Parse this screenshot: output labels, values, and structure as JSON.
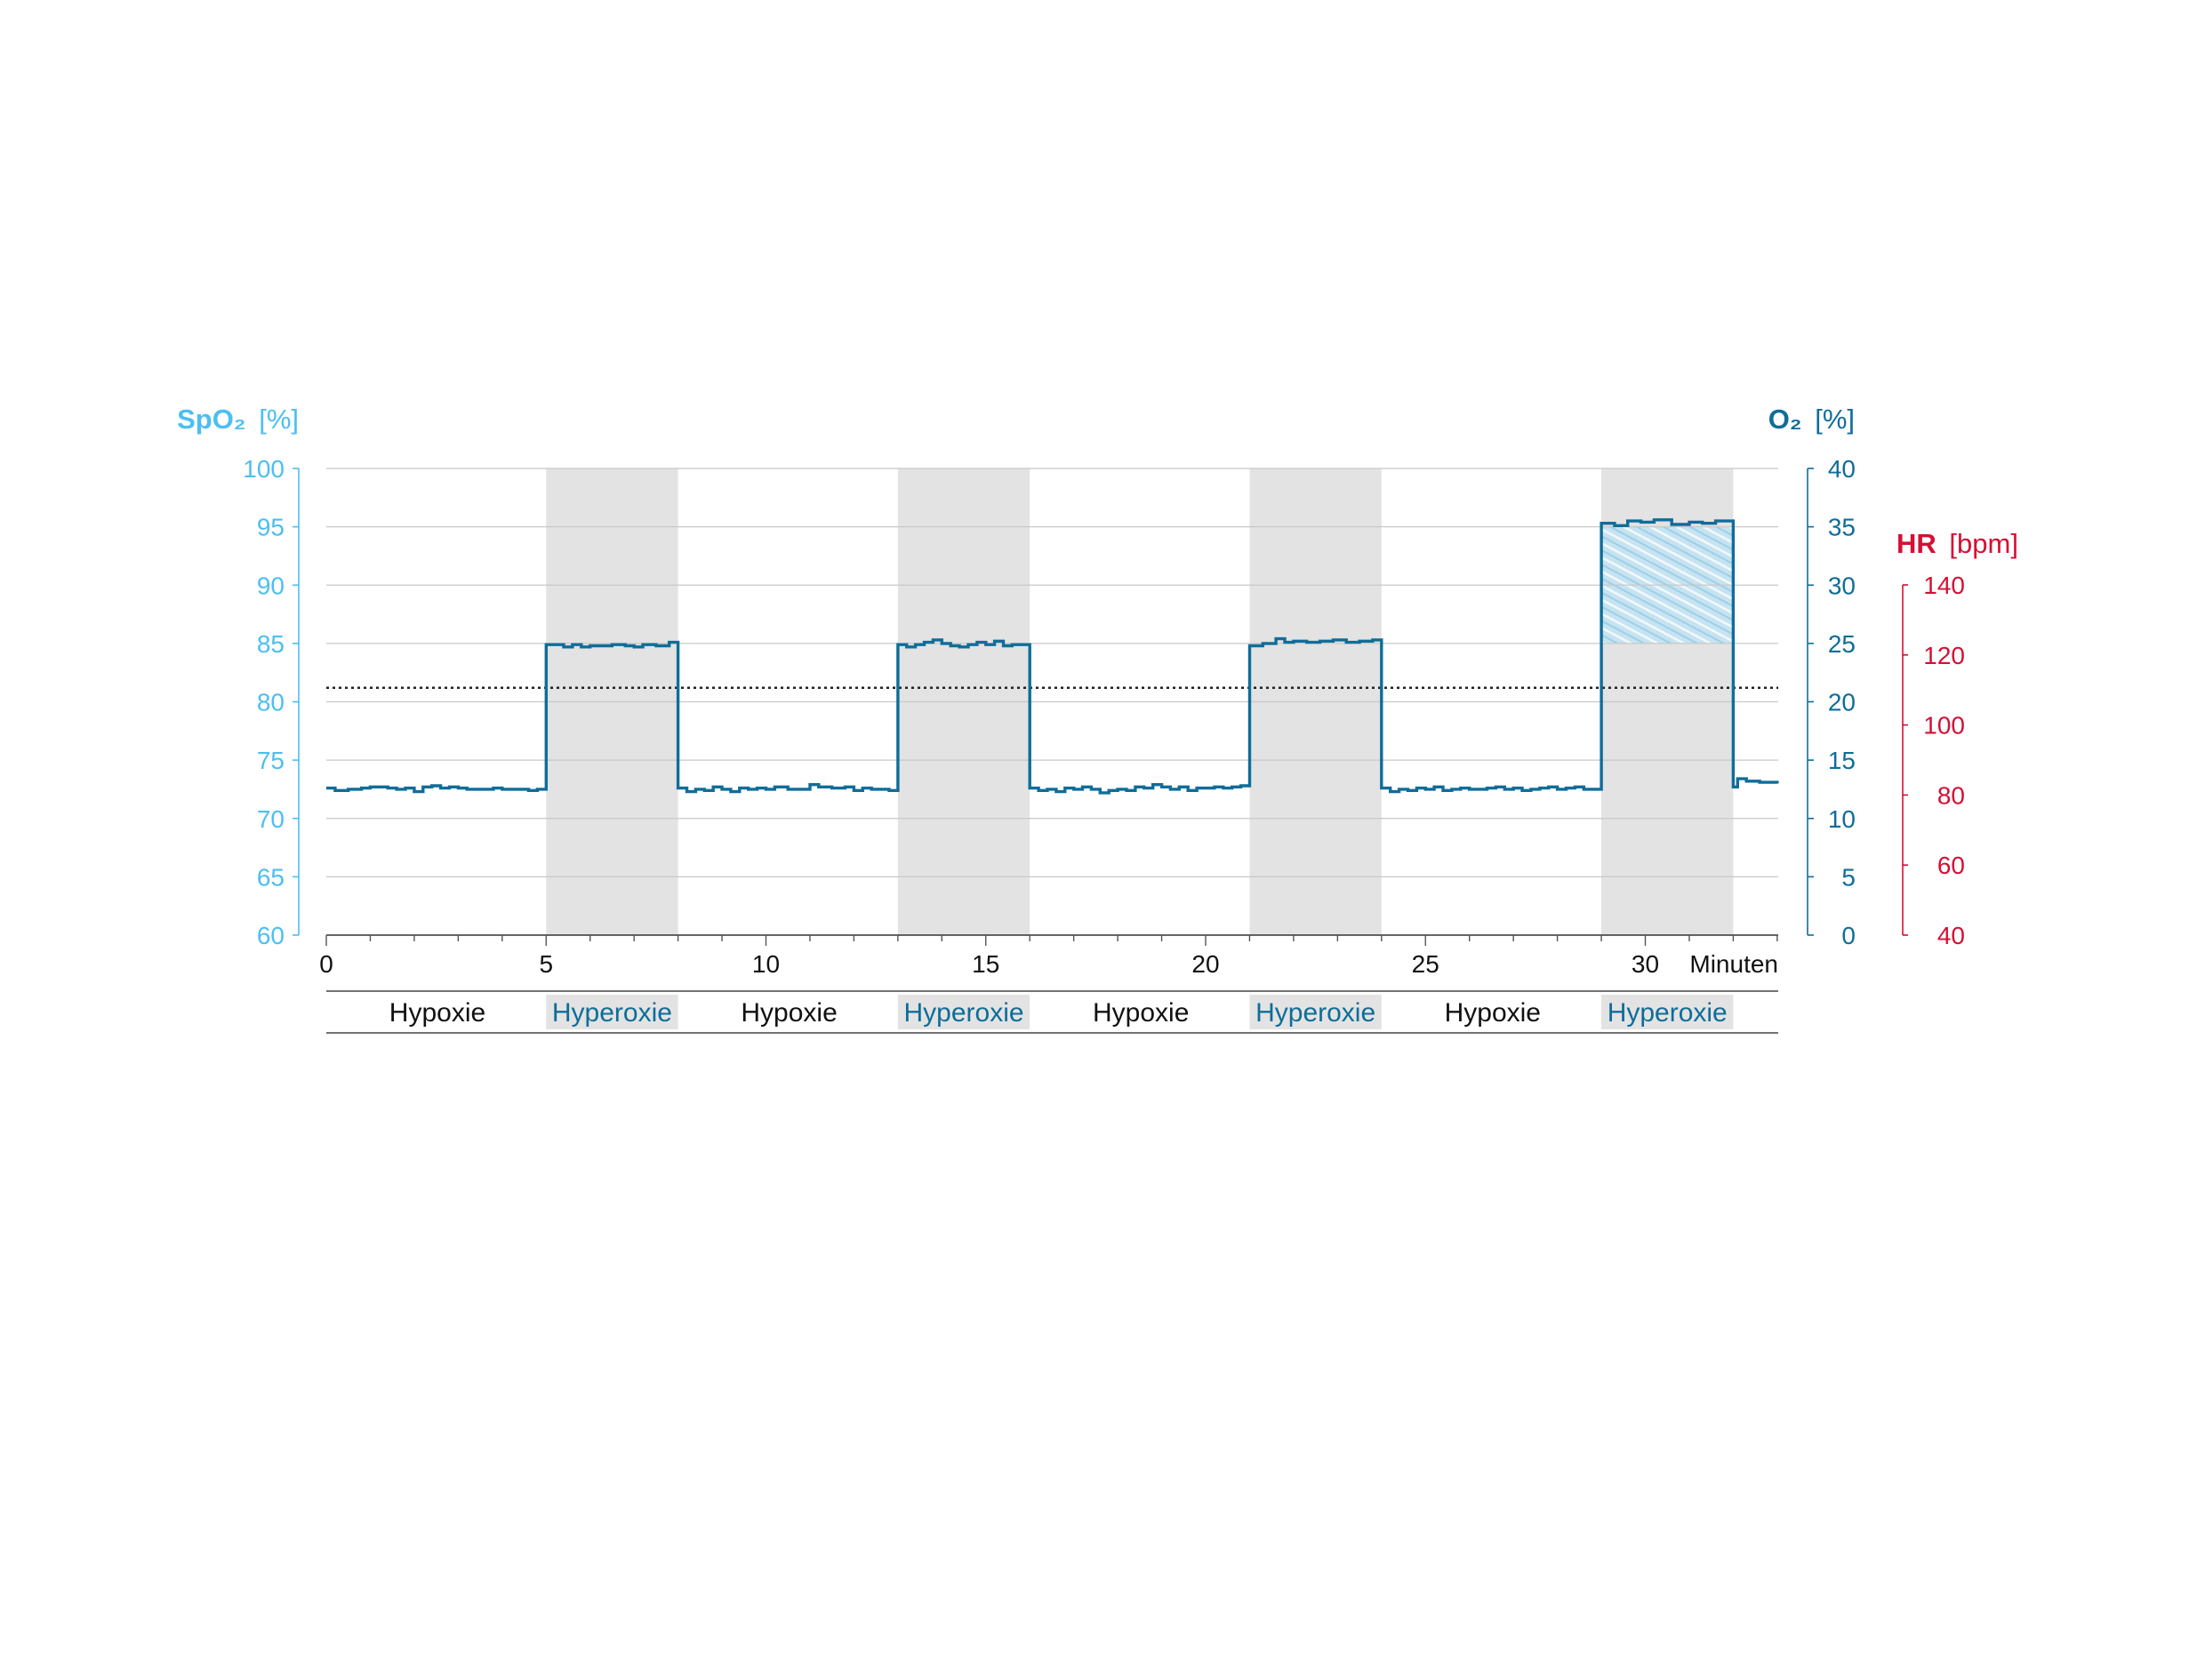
{
  "colors": {
    "spo2": "#4cbff2",
    "o2": "#0f6d99",
    "hr": "#d50f35",
    "band": "#e3e3e3",
    "grid": "#c8c8c8",
    "dotted": "#222222",
    "hatch": "#a9d4e8",
    "text": "#111111"
  },
  "chart_data": {
    "type": "line",
    "x_unit": "Minuten",
    "xlim": [
      0,
      33
    ],
    "x_ticks": [
      "0",
      "5",
      "10",
      "15",
      "20",
      "25",
      "30"
    ],
    "axes": {
      "spo2": {
        "label_main": "SpO₂",
        "label_unit": "[%]",
        "ylim": [
          60,
          100
        ],
        "ticks": [
          "60",
          "65",
          "70",
          "75",
          "80",
          "85",
          "90",
          "95",
          "100"
        ]
      },
      "o2": {
        "label_main": "O₂",
        "label_unit": "[%]",
        "ylim": [
          0,
          40
        ],
        "ticks": [
          "0",
          "5",
          "10",
          "15",
          "20",
          "25",
          "30",
          "35",
          "40"
        ]
      },
      "hr": {
        "label_main": "HR",
        "label_unit": "[bpm]",
        "ylim": [
          40,
          140
        ],
        "ticks": [
          "40",
          "60",
          "80",
          "100",
          "120",
          "140"
        ]
      }
    },
    "threshold_line": {
      "axis": "o2",
      "value": 21.2,
      "style": "dotted"
    },
    "phases": [
      {
        "label": "Hypoxie",
        "start": 0,
        "end": 5,
        "type": "hypoxie"
      },
      {
        "label": "Hyperoxie",
        "start": 5,
        "end": 8,
        "type": "hyperoxie"
      },
      {
        "label": "Hypoxie",
        "start": 8,
        "end": 13,
        "type": "hypoxie"
      },
      {
        "label": "Hyperoxie",
        "start": 13,
        "end": 16,
        "type": "hyperoxie"
      },
      {
        "label": "Hypoxie",
        "start": 16,
        "end": 21,
        "type": "hypoxie"
      },
      {
        "label": "Hyperoxie",
        "start": 21,
        "end": 24,
        "type": "hyperoxie"
      },
      {
        "label": "Hypoxie",
        "start": 24,
        "end": 29,
        "type": "hypoxie"
      },
      {
        "label": "Hyperoxie",
        "start": 29,
        "end": 32,
        "type": "hyperoxie"
      }
    ],
    "highlight_region": {
      "x": [
        29,
        32
      ],
      "o2": [
        25,
        35
      ],
      "pattern": "hatched"
    },
    "series": [
      {
        "axis": "o2",
        "step": true,
        "x": [
          0,
          0.2,
          0.5,
          0.8,
          1.0,
          1.4,
          1.6,
          1.8,
          2.0,
          2.2,
          2.4,
          2.6,
          2.8,
          3.0,
          3.2,
          3.5,
          3.8,
          4.0,
          4.2,
          4.6,
          4.8,
          5.0,
          5.0,
          5.4,
          5.6,
          5.8,
          6.0,
          6.2,
          6.5,
          6.8,
          7.0,
          7.2,
          7.5,
          7.8,
          8.0,
          8.0,
          8.2,
          8.4,
          8.6,
          8.8,
          9.0,
          9.2,
          9.4,
          9.6,
          9.8,
          10.0,
          10.2,
          10.5,
          10.8,
          11.0,
          11.2,
          11.5,
          11.8,
          12.0,
          12.2,
          12.4,
          12.6,
          12.8,
          13.0,
          13.0,
          13.2,
          13.4,
          13.6,
          13.8,
          14.0,
          14.2,
          14.4,
          14.6,
          14.8,
          15.0,
          15.2,
          15.4,
          15.6,
          15.8,
          16.0,
          16.0,
          16.2,
          16.4,
          16.6,
          16.8,
          17.0,
          17.2,
          17.4,
          17.6,
          17.8,
          18.0,
          18.2,
          18.4,
          18.6,
          18.8,
          19.0,
          19.2,
          19.4,
          19.6,
          19.8,
          20.0,
          20.2,
          20.4,
          20.6,
          20.8,
          21.0,
          21.0,
          21.3,
          21.6,
          21.8,
          22.0,
          22.3,
          22.6,
          22.9,
          23.2,
          23.5,
          23.8,
          24.0,
          24.0,
          24.2,
          24.4,
          24.6,
          24.8,
          25.0,
          25.2,
          25.4,
          25.6,
          25.8,
          26.0,
          26.2,
          26.4,
          26.6,
          26.8,
          27.0,
          27.2,
          27.4,
          27.6,
          27.8,
          28.0,
          28.2,
          28.4,
          28.6,
          28.8,
          29.0,
          29.0,
          29.3,
          29.6,
          29.9,
          30.2,
          30.6,
          31.0,
          31.3,
          31.6,
          32.0,
          32.0,
          32.1,
          32.3,
          32.6,
          33.0
        ],
        "y": [
          12.6,
          12.4,
          12.5,
          12.6,
          12.7,
          12.6,
          12.5,
          12.6,
          12.3,
          12.7,
          12.8,
          12.6,
          12.7,
          12.6,
          12.5,
          12.5,
          12.6,
          12.5,
          12.5,
          12.4,
          12.5,
          12.5,
          24.9,
          24.7,
          24.9,
          24.7,
          24.8,
          24.8,
          24.9,
          24.8,
          24.7,
          24.9,
          24.8,
          25.1,
          25.0,
          12.6,
          12.3,
          12.5,
          12.4,
          12.7,
          12.5,
          12.3,
          12.6,
          12.5,
          12.6,
          12.5,
          12.7,
          12.5,
          12.5,
          12.9,
          12.7,
          12.6,
          12.7,
          12.4,
          12.6,
          12.5,
          12.5,
          12.4,
          12.5,
          24.9,
          24.7,
          24.9,
          25.1,
          25.3,
          25.0,
          24.8,
          24.7,
          24.9,
          25.1,
          24.9,
          25.2,
          24.8,
          24.9,
          24.9,
          12.6,
          12.6,
          12.4,
          12.5,
          12.3,
          12.6,
          12.5,
          12.7,
          12.5,
          12.2,
          12.4,
          12.5,
          12.4,
          12.7,
          12.6,
          12.9,
          12.7,
          12.5,
          12.7,
          12.4,
          12.6,
          12.6,
          12.7,
          12.6,
          12.7,
          12.8,
          12.9,
          24.8,
          25.0,
          25.4,
          25.1,
          25.2,
          25.1,
          25.2,
          25.3,
          25.1,
          25.2,
          25.3,
          12.6,
          12.6,
          12.3,
          12.5,
          12.4,
          12.6,
          12.5,
          12.7,
          12.4,
          12.5,
          12.6,
          12.5,
          12.5,
          12.6,
          12.7,
          12.5,
          12.6,
          12.4,
          12.5,
          12.6,
          12.7,
          12.5,
          12.6,
          12.7,
          12.5,
          12.5,
          12.5,
          35.3,
          35.1,
          35.5,
          35.4,
          35.6,
          35.2,
          35.4,
          35.3,
          35.5,
          35.0,
          12.7,
          13.4,
          13.2,
          13.1,
          13.0
        ]
      }
    ]
  }
}
